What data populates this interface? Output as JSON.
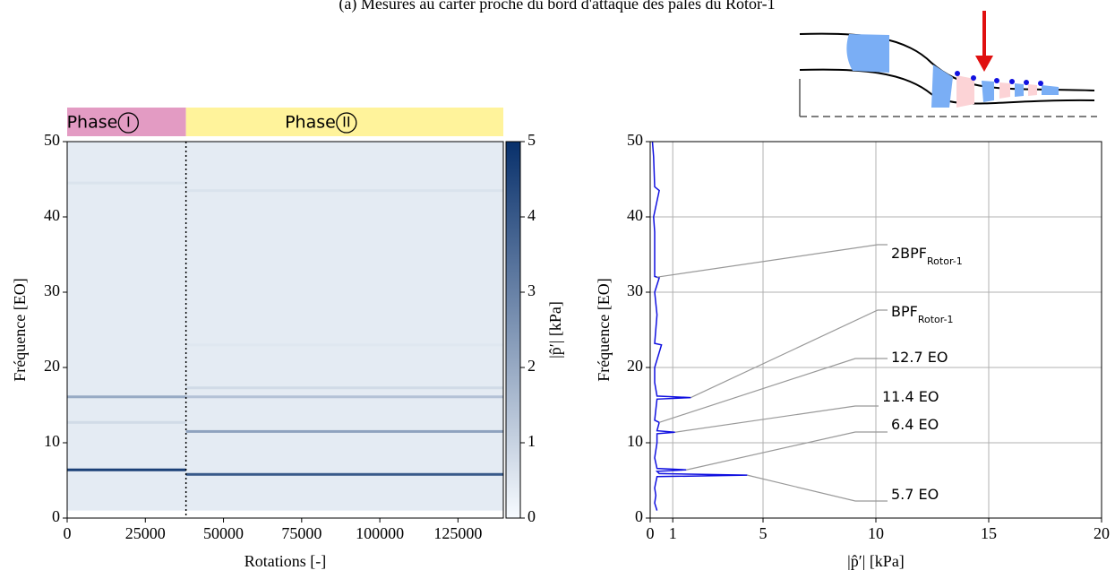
{
  "title": "(a) Mesures au carter proche du bord d'attaque des pales du Rotor-1",
  "chart_data": [
    {
      "type": "heatmap",
      "xlabel": "Rotations [-]",
      "ylabel": "Fréquence [EO]",
      "xlim": [
        0,
        139500
      ],
      "xticks": [
        0,
        25000,
        50000,
        75000,
        100000,
        125000
      ],
      "ylim": [
        0,
        50
      ],
      "yticks": [
        0,
        10,
        20,
        30,
        40,
        50
      ],
      "colorbar_label": "|p̂′| [kPa]",
      "clim": [
        0,
        5
      ],
      "cticks": [
        0,
        1,
        2,
        3,
        4,
        5
      ],
      "colormap": [
        "#f7fbff",
        "#08306b"
      ],
      "background_level": 0.4,
      "freq_range": [
        1,
        50
      ],
      "phases": [
        {
          "label": "Phase",
          "numeral": "I",
          "x": [
            0,
            38000
          ],
          "color": "#e39bc3"
        },
        {
          "label": "Phase",
          "numeral": "II",
          "x": [
            38000,
            139500
          ],
          "color": "#fff39b"
        }
      ],
      "bands": [
        {
          "x": [
            0,
            38000
          ],
          "y": 6.4,
          "value": 4.6
        },
        {
          "x": [
            0,
            38000
          ],
          "y": 16.1,
          "value": 2.0
        },
        {
          "x": [
            0,
            38000
          ],
          "y": 12.7,
          "value": 0.8
        },
        {
          "x": [
            0,
            38000
          ],
          "y": 44.5,
          "value": 0.6
        },
        {
          "x": [
            38000,
            139500
          ],
          "y": 5.8,
          "value": 4.0
        },
        {
          "x": [
            38000,
            139500
          ],
          "y": 11.5,
          "value": 2.2
        },
        {
          "x": [
            38000,
            139500
          ],
          "y": 16.1,
          "value": 1.4
        },
        {
          "x": [
            38000,
            139500
          ],
          "y": 17.3,
          "value": 0.8
        },
        {
          "x": [
            38000,
            139500
          ],
          "y": 43.5,
          "value": 0.6
        },
        {
          "x": [
            38000,
            139500
          ],
          "y": 23.0,
          "value": 0.5
        }
      ]
    },
    {
      "type": "line",
      "xlabel": "|p̂′| [kPa]",
      "ylabel": "Fréquence [EO]",
      "xlim": [
        0,
        20
      ],
      "xticks": [
        0,
        1,
        5,
        10,
        15,
        20
      ],
      "ylim": [
        0,
        50
      ],
      "yticks": [
        0,
        10,
        20,
        30,
        40,
        50
      ],
      "grid": true,
      "series": [
        {
          "color": "#1010e0",
          "frequency": [
            1,
            2,
            3,
            4,
            5.5,
            5.7,
            5.9,
            6.2,
            6.4,
            6.6,
            8,
            10,
            11.2,
            11.4,
            11.6,
            12.7,
            13,
            15.8,
            16,
            16.2,
            18,
            20,
            23,
            23.2,
            27,
            30,
            31.9,
            32.1,
            35,
            38,
            40,
            43.5,
            44,
            48,
            50
          ],
          "amplitude": [
            0.3,
            0.2,
            0.25,
            0.2,
            0.3,
            4.3,
            0.4,
            0.3,
            1.6,
            0.3,
            0.2,
            0.3,
            0.3,
            1.1,
            0.3,
            0.4,
            0.2,
            0.3,
            1.8,
            0.3,
            0.2,
            0.2,
            0.5,
            0.2,
            0.3,
            0.2,
            0.4,
            0.2,
            0.2,
            0.2,
            0.15,
            0.4,
            0.2,
            0.15,
            0.1
          ]
        }
      ],
      "annotations": [
        {
          "text": "2BPF",
          "subscript": "Rotor-1",
          "frequency": 32,
          "amplitude": 0.3
        },
        {
          "text": "BPF",
          "subscript": "Rotor-1",
          "frequency": 16,
          "amplitude": 1.8
        },
        {
          "text": "12.7 EO",
          "frequency": 12.7,
          "amplitude": 0.4
        },
        {
          "text": "11.4 EO",
          "frequency": 11.4,
          "amplitude": 1.1
        },
        {
          "text": "6.4 EO",
          "frequency": 6.4,
          "amplitude": 1.6
        },
        {
          "text": "5.7 EO",
          "frequency": 5.7,
          "amplitude": 4.3
        }
      ]
    }
  ]
}
